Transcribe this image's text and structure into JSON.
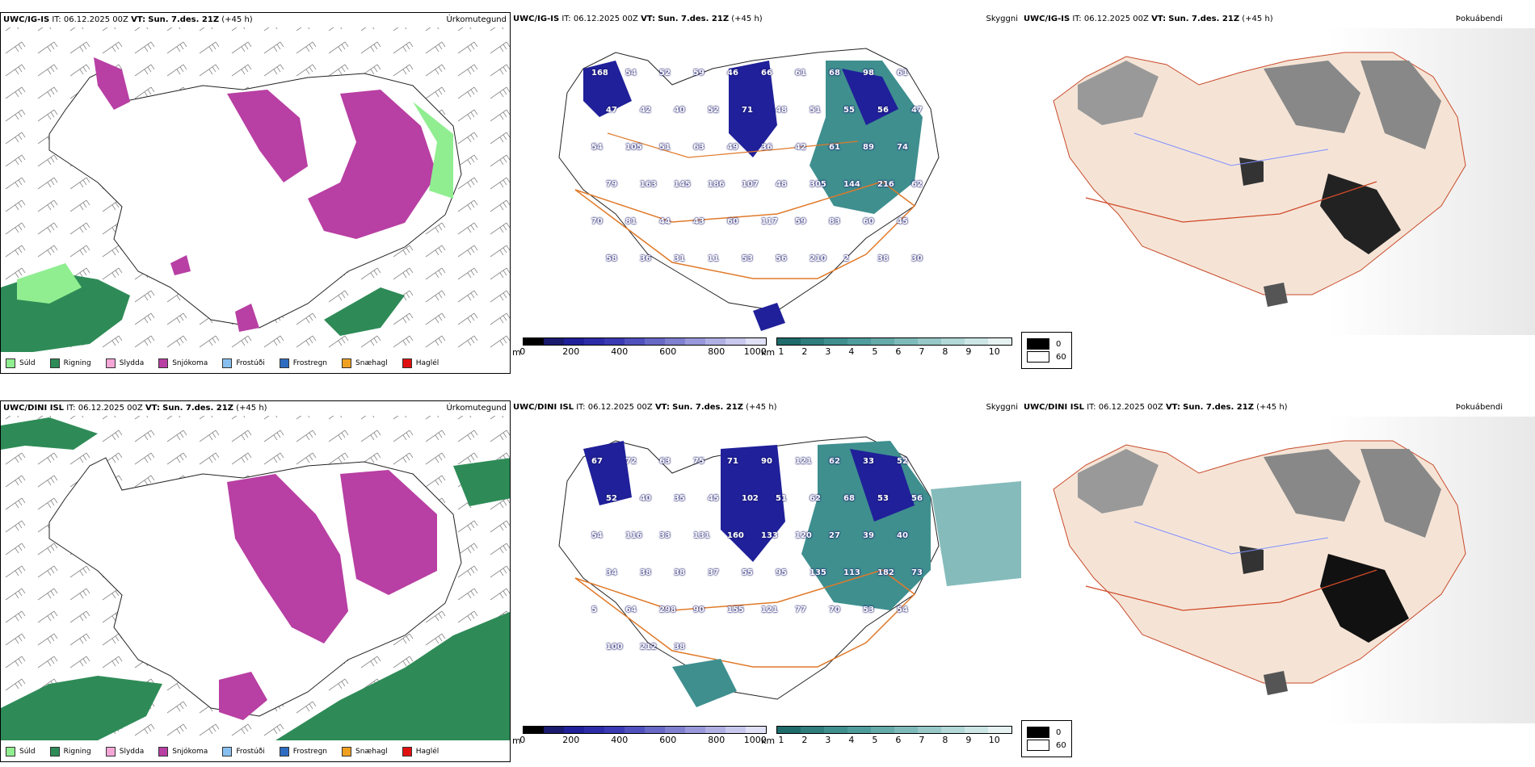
{
  "rows": [
    {
      "model": "UWC/IG-IS",
      "precip": {
        "it": "IT: 06.12.2025 00Z",
        "vt_label": "VT:",
        "vt": "Sun. 7.des. 21Z",
        "lead": "(+45 h)",
        "type": "Úrkomutegund"
      },
      "cloud": {
        "it": "IT: 06.12.2025 00Z",
        "vt_label": "VT:",
        "vt": "Sun. 7.des. 21Z",
        "lead": "(+45 h)",
        "type": "Skyggni"
      },
      "fog": {
        "it": "IT: 06.12.2025 00Z",
        "vt_label": "VT:",
        "vt": "Sun. 7.des. 21Z",
        "lead": "(+45 h)",
        "type": "Þokuábendi"
      },
      "cloud_labels": [
        "168",
        "54",
        "52",
        "59",
        "46",
        "66",
        "61",
        "68",
        "98",
        "61",
        "47",
        "42",
        "40",
        "52",
        "71",
        "48",
        "51",
        "55",
        "56",
        "47",
        "54",
        "105",
        "51",
        "63",
        "49",
        "36",
        "42",
        "61",
        "89",
        "74",
        "79",
        "163",
        "145",
        "186",
        "107",
        "48",
        "305",
        "144",
        "216",
        "62",
        "70",
        "81",
        "44",
        "43",
        "60",
        "117",
        "59",
        "83",
        "60",
        "45",
        "58",
        "36",
        "31",
        "11",
        "53",
        "56",
        "210",
        "2",
        "38",
        "30"
      ],
      "cloud_label_color": "#ffffff"
    },
    {
      "model": "UWC/DINI ISL",
      "precip": {
        "it": "IT: 06.12.2025 00Z",
        "vt_label": "VT:",
        "vt": "Sun. 7.des. 21Z",
        "lead": "(+45 h)",
        "type": "Úrkomutegund"
      },
      "cloud": {
        "it": "IT: 06.12.2025 00Z",
        "vt_label": "VT:",
        "vt": "Sun. 7.des. 21Z",
        "lead": "(+45 h)",
        "type": "Skyggni"
      },
      "fog": {
        "it": "IT: 06.12.2025 00Z",
        "vt_label": "VT:",
        "vt": "Sun. 7.des. 21Z",
        "lead": "(+45 h)",
        "type": "Þokuábendi"
      },
      "cloud_labels": [
        "67",
        "72",
        "63",
        "75",
        "71",
        "90",
        "121",
        "62",
        "33",
        "52",
        "52",
        "40",
        "35",
        "45",
        "102",
        "51",
        "62",
        "68",
        "53",
        "56",
        "54",
        "116",
        "33",
        "131",
        "160",
        "133",
        "120",
        "27",
        "39",
        "40",
        "34",
        "38",
        "38",
        "37",
        "55",
        "95",
        "135",
        "113",
        "182",
        "73",
        "5",
        "64",
        "298",
        "90",
        "155",
        "121",
        "77",
        "70",
        "53",
        "54",
        "100",
        "212",
        "38"
      ],
      "cloud_label_color": "#ffffff"
    }
  ],
  "precip_legend": [
    {
      "label": "Súld",
      "color": "#90ee90"
    },
    {
      "label": "Rigning",
      "color": "#2e8b57"
    },
    {
      "label": "Slydda",
      "color": "#f4a6d7"
    },
    {
      "label": "Snjókoma",
      "color": "#b83fa3"
    },
    {
      "label": "Frostúði",
      "color": "#87c0f0"
    },
    {
      "label": "Frostregn",
      "color": "#2d6cc0"
    },
    {
      "label": "Snæhagl",
      "color": "#f0a020"
    },
    {
      "label": "Haglél",
      "color": "#e01010"
    }
  ],
  "cbar_m": {
    "unit": "m",
    "ticks": [
      "0",
      "200",
      "400",
      "600",
      "800",
      "1000"
    ],
    "colors": [
      "#000000",
      "#1a1a6e",
      "#20209a",
      "#2c2ca8",
      "#3a3ab4",
      "#5050be",
      "#6868c6",
      "#8080d0",
      "#9898da",
      "#b0b0e4",
      "#c8c8ee",
      "#e0e0f6"
    ]
  },
  "cbar_km": {
    "unit": "km",
    "ticks": [
      "1",
      "2",
      "3",
      "4",
      "5",
      "6",
      "7",
      "8",
      "9",
      "10"
    ],
    "colors": [
      "#1f6b6b",
      "#2f7d7d",
      "#3f8f8f",
      "#4f9c9c",
      "#66aaaa",
      "#7fbaba",
      "#98c8c8",
      "#b2d8d8",
      "#cce6e6",
      "#e6f2f2"
    ]
  },
  "fog_legend": [
    {
      "label": "0",
      "color": "#000000"
    },
    {
      "label": "60",
      "color": "#ffffff"
    }
  ]
}
